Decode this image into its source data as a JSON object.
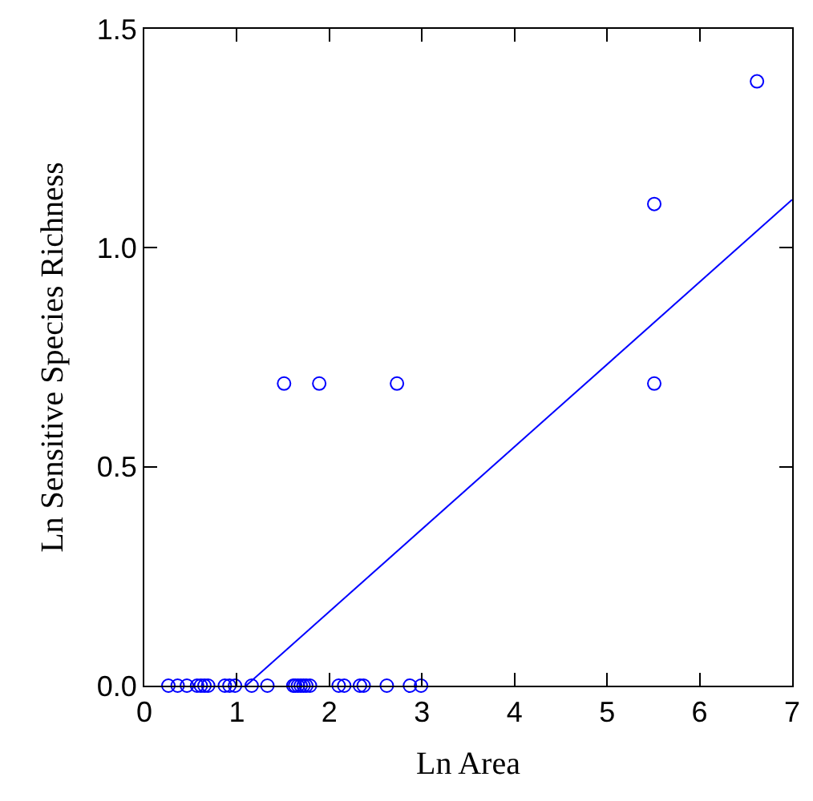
{
  "chart_data": {
    "type": "scatter",
    "xlabel": "Ln Area",
    "ylabel": "Ln Sensitive Species Richness",
    "xlim": [
      0,
      7
    ],
    "xticks": [
      0,
      1,
      2,
      3,
      4,
      5,
      6,
      7
    ],
    "ylim": [
      0,
      1.5
    ],
    "yticks": [
      {
        "value": 0,
        "label": "0.0"
      },
      0.5,
      {
        "value": 1,
        "label": "1.0"
      },
      1.5
    ],
    "series": [
      {
        "marker": "circle",
        "color": "#0000ff",
        "x": [
          0.26,
          0.36,
          0.46,
          0.57,
          0.61,
          0.65,
          0.69,
          0.87,
          0.92,
          0.98,
          1.16,
          1.33,
          1.61,
          1.63,
          1.66,
          1.69,
          1.72,
          1.75,
          1.79,
          2.1,
          2.16,
          2.33,
          2.37,
          2.62,
          2.87,
          2.99,
          1.51,
          1.89,
          2.73,
          5.51,
          5.51,
          6.62
        ],
        "values": [
          0,
          0,
          0,
          0,
          0,
          0,
          0,
          0,
          0,
          0,
          0,
          0,
          0,
          0,
          0,
          0,
          0,
          0,
          0,
          0,
          0,
          0,
          0,
          0,
          0,
          0,
          0.69,
          0.69,
          0.69,
          1.1,
          0.69,
          1.38
        ]
      },
      {
        "type": "line",
        "marker": "none",
        "line_style": "solid",
        "color": "#0000ff",
        "x": [
          1.1,
          7
        ],
        "values": [
          0,
          1.11
        ]
      }
    ]
  }
}
